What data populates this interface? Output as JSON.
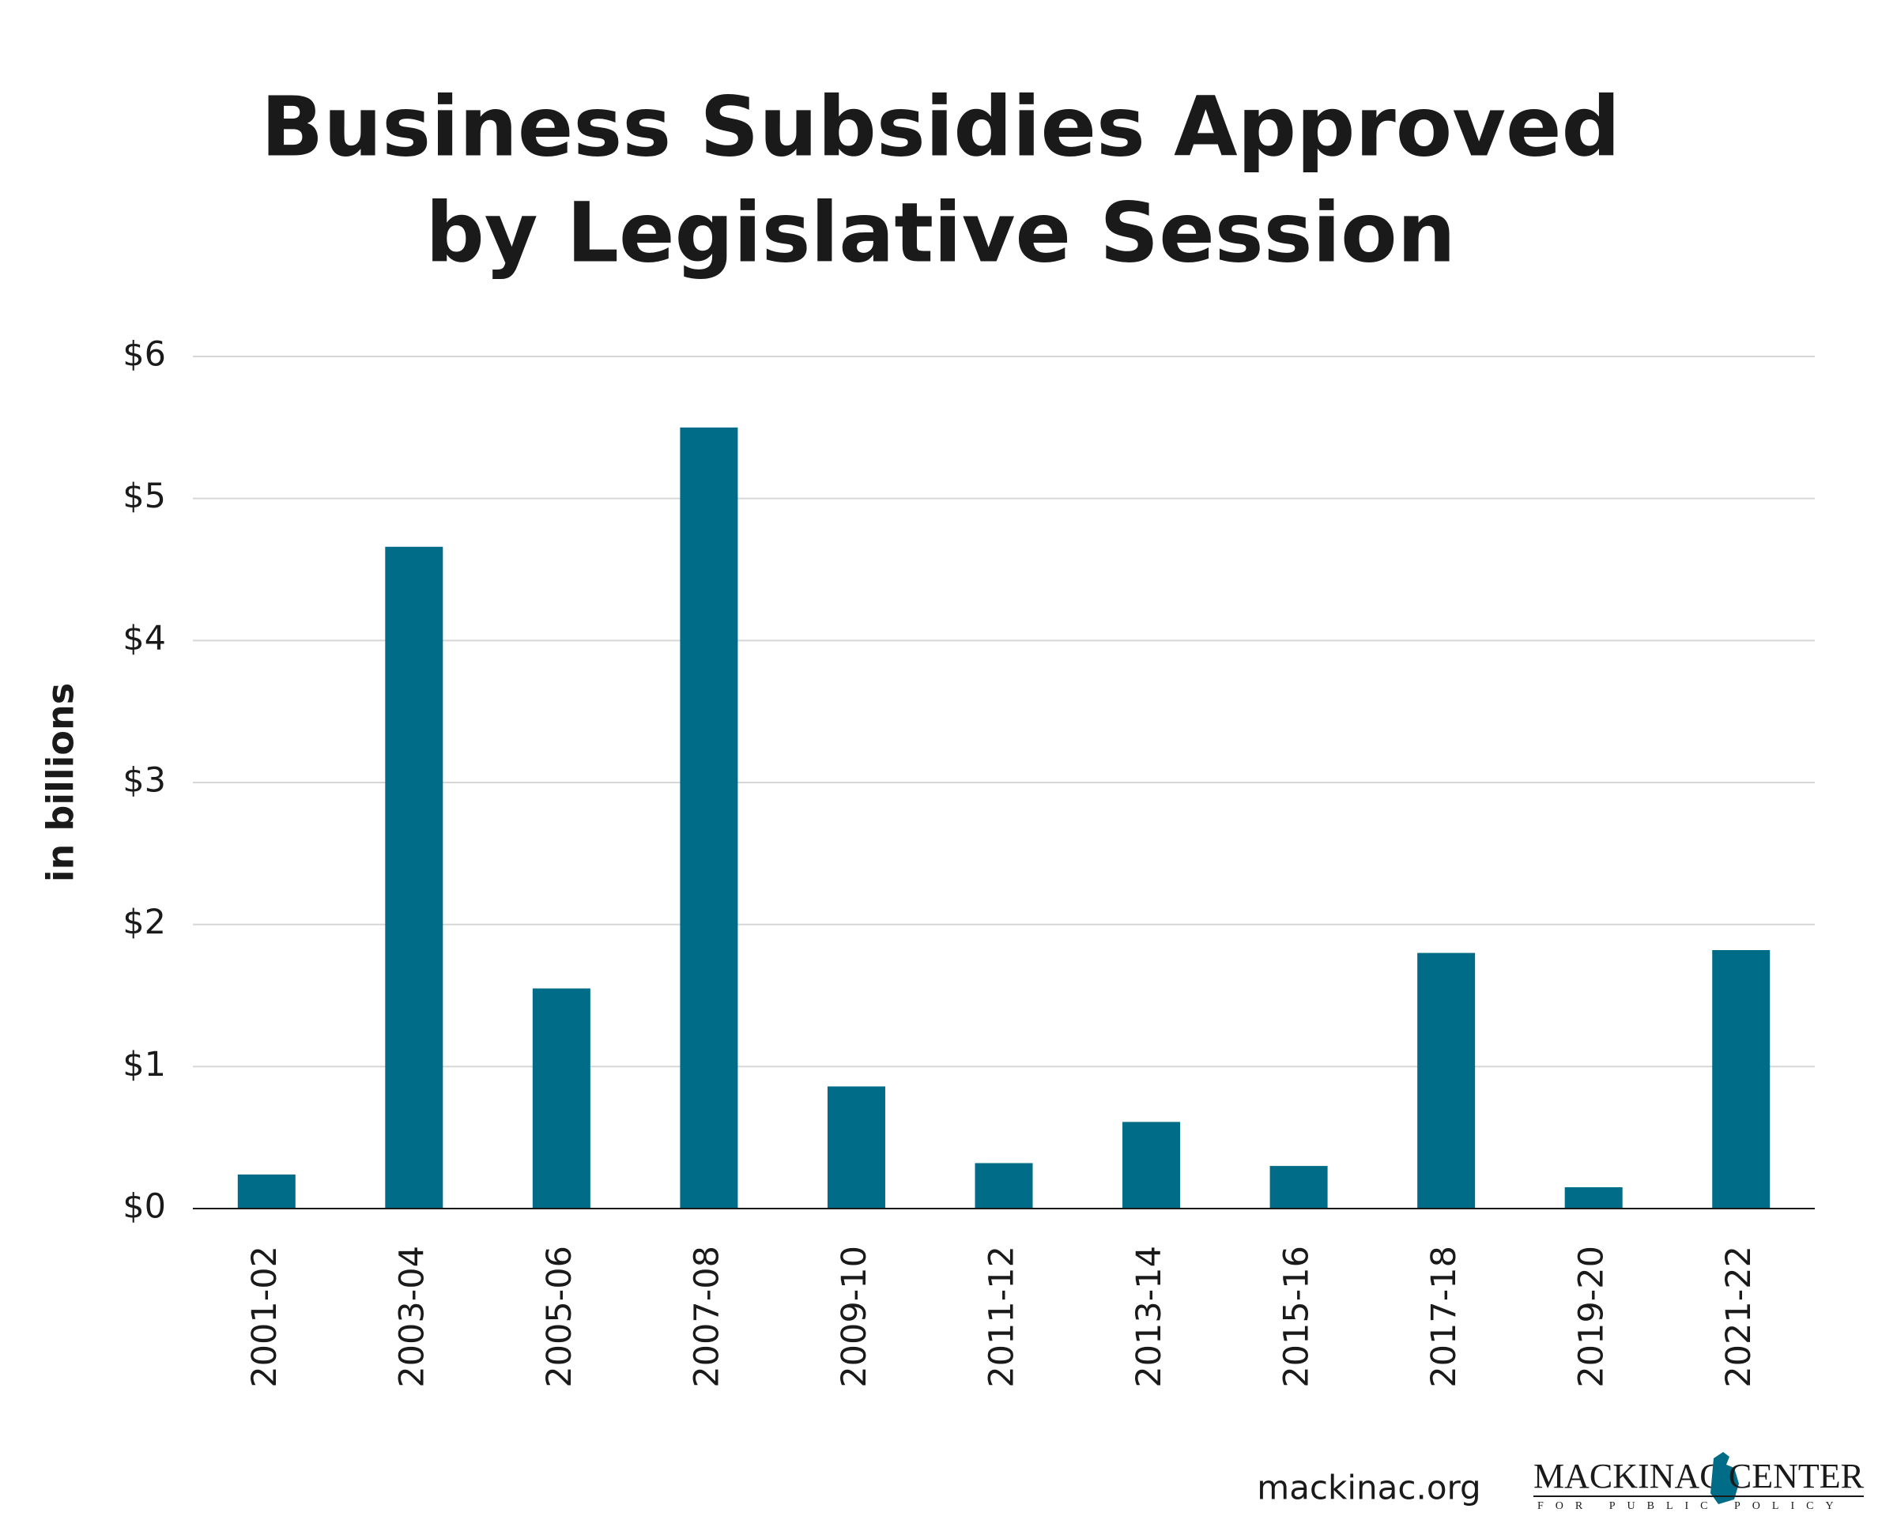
{
  "chart_data": {
    "type": "bar",
    "title_lines": [
      "Business Subsidies Approved",
      "by Legislative Session"
    ],
    "y_label": "in billions",
    "categories": [
      "2001-02",
      "2003-04",
      "2005-06",
      "2007-08",
      "2009-10",
      "2011-12",
      "2013-14",
      "2015-16",
      "2017-18",
      "2019-20",
      "2021-22"
    ],
    "values": [
      0.24,
      4.66,
      1.55,
      5.5,
      0.86,
      0.32,
      0.61,
      0.3,
      1.8,
      0.15,
      1.82
    ],
    "color": "#006c87",
    "ylim": [
      0,
      6
    ],
    "yticks": [
      {
        "value": 0,
        "label": "$0"
      },
      {
        "value": 1,
        "label": "$1"
      },
      {
        "value": 2,
        "label": "$2"
      },
      {
        "value": 3,
        "label": "$3"
      },
      {
        "value": 4,
        "label": "$4"
      },
      {
        "value": 5,
        "label": "$5"
      },
      {
        "value": 6,
        "label": "$6"
      }
    ],
    "grid": true,
    "source": "mackinac.org",
    "logo": {
      "name_left": "MACKINAC",
      "name_right": "CENTER",
      "tagline": "FOR PUBLIC POLICY"
    }
  }
}
